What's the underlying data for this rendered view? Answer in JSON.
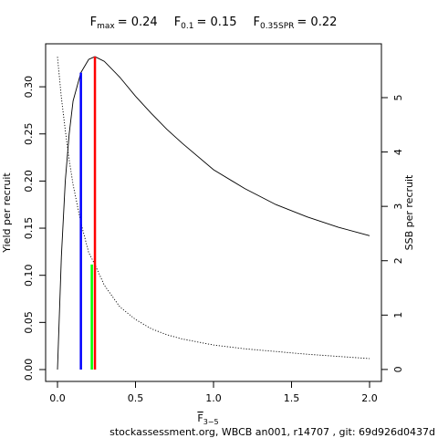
{
  "chart_data": {
    "type": "line",
    "reference_lines": [
      {
        "name": "F",
        "subscript": "max",
        "value": 0.24,
        "value_label": "= 0.24",
        "color": "#ff0000",
        "top": 0.332,
        "axis": "y"
      },
      {
        "name": "F",
        "subscript": "0.1",
        "value": 0.15,
        "value_label": "= 0.15",
        "color": "#0000ff",
        "top": 0.315,
        "axis": "y"
      },
      {
        "name": "F",
        "subscript": "0.35SPR",
        "value": 0.22,
        "value_label": "= 0.22",
        "color": "#00ff00",
        "top": 1.93,
        "axis": "y2"
      }
    ],
    "xlabel": "F",
    "xlabel_subscript": "3−5",
    "ylabel": "Yield per recruit",
    "y2label": "SSB per recruit",
    "footnote": "stockassessment.org, WBCB an001, r14707 , git: 69d926d0437d",
    "x": [
      0,
      0.025,
      0.05,
      0.075,
      0.1,
      0.15,
      0.2,
      0.24,
      0.3,
      0.4,
      0.5,
      0.6,
      0.7,
      0.8,
      1.0,
      1.2,
      1.4,
      1.6,
      1.8,
      2.0
    ],
    "series": [
      {
        "name": "Yield per recruit",
        "color": "#000000",
        "dash": "solid",
        "axis": "y",
        "values": [
          0,
          0.12,
          0.2,
          0.25,
          0.285,
          0.315,
          0.329,
          0.332,
          0.327,
          0.31,
          0.29,
          0.272,
          0.255,
          0.24,
          0.212,
          0.192,
          0.175,
          0.162,
          0.151,
          0.142
        ]
      },
      {
        "name": "SSB per recruit",
        "color": "#000000",
        "dash": "dotted",
        "axis": "y2",
        "values": [
          5.75,
          5.0,
          4.4,
          3.85,
          3.4,
          2.7,
          2.15,
          1.93,
          1.55,
          1.15,
          0.92,
          0.75,
          0.64,
          0.56,
          0.45,
          0.38,
          0.33,
          0.28,
          0.24,
          0.2
        ]
      }
    ],
    "xlim": [
      -0.076,
      2.076
    ],
    "xticks": [
      {
        "value": 0,
        "label": "0.0"
      },
      0.5,
      {
        "value": 1,
        "label": "1.0"
      },
      1.5,
      {
        "value": 2,
        "label": "2.0"
      }
    ],
    "ylim": [
      -0.0126,
      0.3456
    ],
    "yticks": [
      {
        "value": 0,
        "label": "0.00"
      },
      0.05,
      {
        "value": 0.1,
        "label": "0.10"
      },
      0.15,
      {
        "value": 0.2,
        "label": "0.20"
      },
      0.25,
      {
        "value": 0.3,
        "label": "0.30"
      }
    ],
    "y2lim": [
      -0.22,
      5.99
    ],
    "y2ticks": [
      0,
      1,
      2,
      3,
      4,
      5
    ]
  }
}
